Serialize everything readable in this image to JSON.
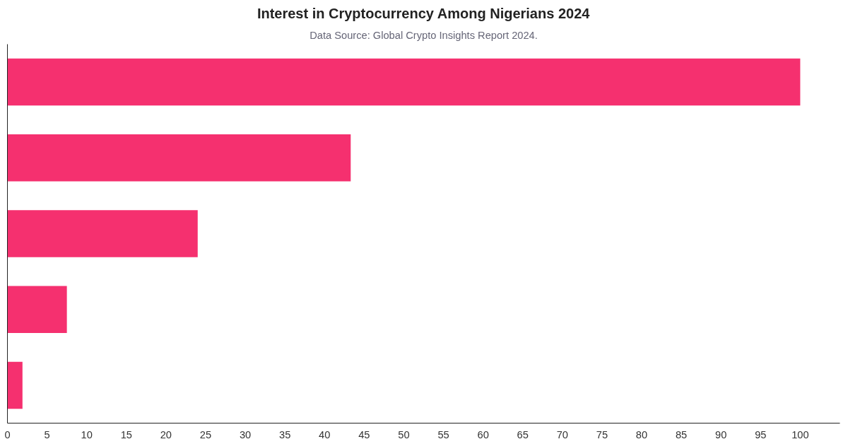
{
  "chart_data": {
    "type": "bar",
    "orientation": "horizontal",
    "title": "Interest in Cryptocurrency Among Nigerians 2024",
    "subtitle": "Data Source: Global Crypto Insights Report 2024.",
    "categories": [
      null,
      null,
      null,
      null,
      null
    ],
    "values": [
      100,
      43.3,
      24.0,
      7.5,
      1.9
    ],
    "color": "#f5306f",
    "xlim": [
      0,
      105
    ],
    "xticks": [
      0,
      5,
      10,
      15,
      20,
      25,
      30,
      35,
      40,
      45,
      50,
      55,
      60,
      65,
      70,
      75,
      80,
      85,
      90,
      95,
      100
    ],
    "grid": false,
    "tick_labels": "x"
  }
}
